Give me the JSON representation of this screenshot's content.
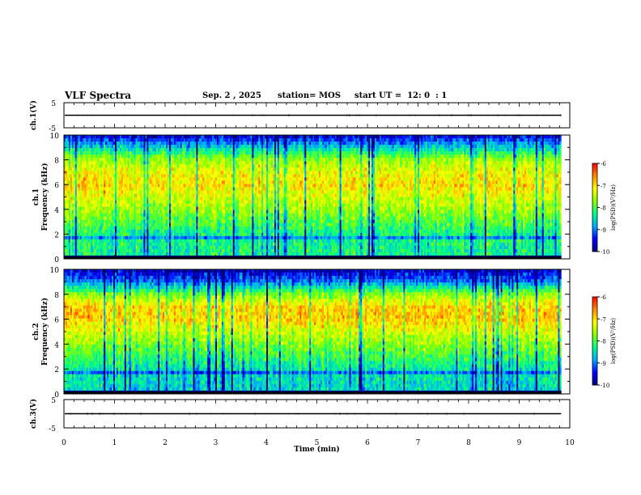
{
  "header": {
    "title": "VLF Spectra",
    "date": "Sep. 2 , 2025",
    "station": "station= MOS",
    "start": "start UT =  12: 0  : 1"
  },
  "colors": {
    "colormap": [
      "#00007a",
      "#0000ff",
      "#00aaff",
      "#00ff88",
      "#88ff00",
      "#ffff00",
      "#ff8800",
      "#ff0000",
      "#ffffff"
    ],
    "trace": "#000000"
  },
  "chart_data": [
    {
      "type": "line",
      "panel": "ch1-waveform",
      "ylabel": "ch.1(V)",
      "ylim": [
        -5,
        5
      ],
      "yticks": [
        "5",
        "-5"
      ],
      "xlim": [
        0,
        10
      ],
      "note_values": "flat trace near 0 V",
      "series": [
        {
          "values_const": 0
        }
      ]
    },
    {
      "type": "heatmap",
      "panel": "ch1-spectrogram",
      "ylabel": "ch.1\nFrequency (kHz)",
      "ylabel_lines": [
        "ch.1",
        "Frequency (kHz)"
      ],
      "ylim": [
        0,
        10
      ],
      "yticks": [
        "0",
        "2",
        "4",
        "6",
        "8",
        "10"
      ],
      "xlim": [
        0,
        10
      ],
      "data_end_min": 9.83,
      "colorbar": {
        "label": "log(PSD)(V²/Hz)",
        "min": -10,
        "max": -6,
        "ticks": [
          "-6",
          "-7",
          "-8",
          "-9",
          "-10"
        ]
      },
      "profile_khz": [
        0,
        2,
        4,
        6,
        7,
        8,
        9,
        10
      ],
      "profile_level": [
        -8.3,
        -8.3,
        -7.6,
        -7.0,
        -7.2,
        -7.6,
        -8.6,
        -9.6
      ]
    },
    {
      "type": "heatmap",
      "panel": "ch2-spectrogram",
      "ylabel": "ch.2\nFrequency (kHz)",
      "ylabel_lines": [
        "ch.2",
        "Frequency (kHz)"
      ],
      "ylim": [
        0,
        10
      ],
      "yticks": [
        "0",
        "2",
        "4",
        "6",
        "8",
        "10"
      ],
      "xlim": [
        0,
        10
      ],
      "data_end_min": 9.83,
      "colorbar": {
        "label": "log(PSD)(V²/Hz)",
        "min": -10,
        "max": -6,
        "ticks": [
          "-6",
          "-7",
          "-8",
          "-9",
          "-10"
        ]
      },
      "profile_khz": [
        0,
        2,
        4,
        6,
        7,
        8,
        9,
        10
      ],
      "profile_level": [
        -8.6,
        -8.4,
        -7.7,
        -6.9,
        -6.9,
        -7.7,
        -9.0,
        -9.7
      ]
    },
    {
      "type": "line",
      "panel": "ch3-waveform",
      "ylabel": "ch.3(V)",
      "ylim": [
        -5,
        5
      ],
      "yticks": [
        "5",
        "-5"
      ],
      "xlim": [
        0,
        10
      ],
      "xlabel": "Time (min)",
      "xticks": [
        "0",
        "1",
        "2",
        "3",
        "4",
        "5",
        "6",
        "7",
        "8",
        "9",
        "10"
      ],
      "note_values": "flat trace near 0 V",
      "series": [
        {
          "values_const": 0
        }
      ]
    }
  ]
}
